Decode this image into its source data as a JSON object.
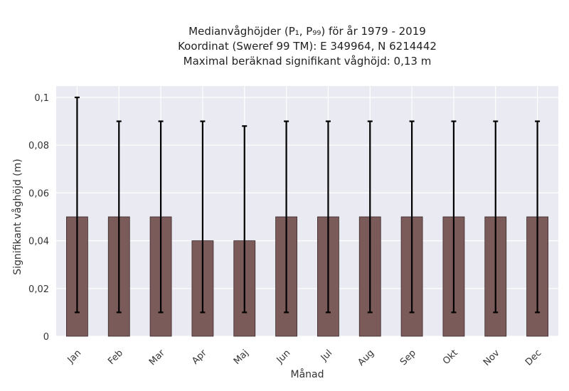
{
  "chart_data": {
    "type": "bar",
    "title_lines": [
      "Medianvåghöjder (P₁, P₉₉) för år 1979 - 2019",
      "Koordinat (Sweref 99 TM): E 349964, N 6214442",
      "Maximal beräknad signifikant våghöjd: 0,13 m"
    ],
    "xlabel": "Månad",
    "ylabel": "Signifikant våghöjd (m)",
    "categories": [
      "Jan",
      "Feb",
      "Mar",
      "Apr",
      "Maj",
      "Jun",
      "Jul",
      "Aug",
      "Sep",
      "Okt",
      "Nov",
      "Dec"
    ],
    "values": [
      0.05,
      0.05,
      0.05,
      0.04,
      0.04,
      0.05,
      0.05,
      0.05,
      0.05,
      0.05,
      0.05,
      0.05
    ],
    "p1": [
      0.01,
      0.01,
      0.01,
      0.01,
      0.01,
      0.01,
      0.01,
      0.01,
      0.01,
      0.01,
      0.01,
      0.01
    ],
    "p99": [
      0.1,
      0.09,
      0.09,
      0.09,
      0.088,
      0.09,
      0.09,
      0.09,
      0.09,
      0.09,
      0.09,
      0.09
    ],
    "yticks": [
      "0",
      "0,02",
      "0,04",
      "0,06",
      "0,08",
      "0,1"
    ],
    "ylim": [
      0,
      0.1
    ],
    "grid": true,
    "bar_color": "#7b5a5a",
    "background_color": "#eaeaf2"
  }
}
